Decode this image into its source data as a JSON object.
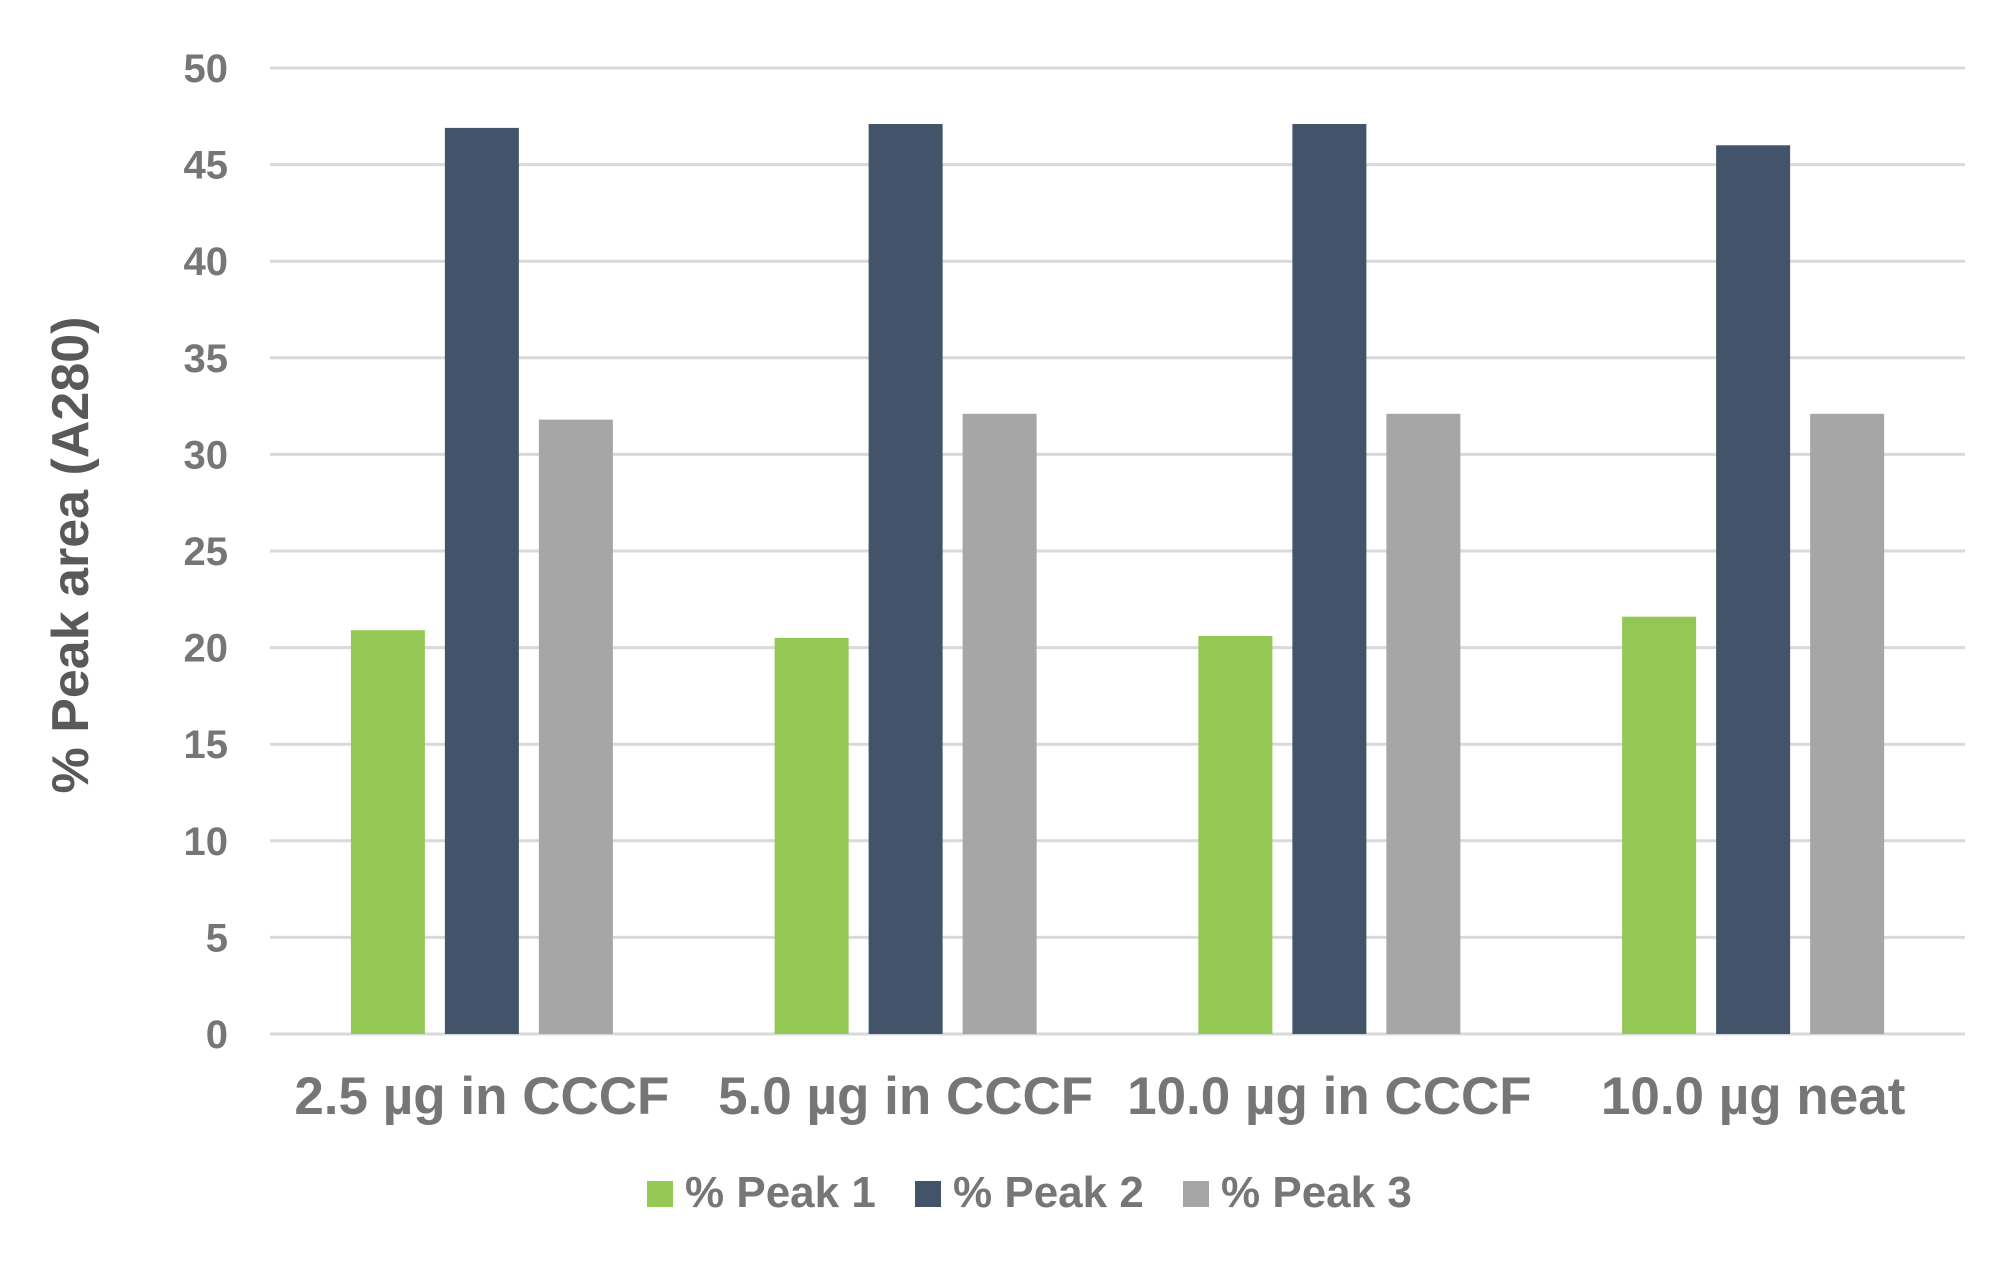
{
  "chart_data": {
    "type": "bar",
    "title": "",
    "xlabel": "",
    "ylabel": "% Peak area (A280)",
    "ylim": [
      0,
      50
    ],
    "ytick_step": 5,
    "grid": true,
    "legend_position": "bottom",
    "categories": [
      "2.5 µg in CCCF",
      "5.0 µg in CCCF",
      "10.0 µg in CCCF",
      "10.0 µg neat"
    ],
    "series": [
      {
        "name": "% Peak 1",
        "color": "#92c853",
        "values": [
          20.9,
          20.5,
          20.6,
          21.6
        ]
      },
      {
        "name": "% Peak 2",
        "color": "#435369",
        "values": [
          46.9,
          47.1,
          47.1,
          46.0
        ]
      },
      {
        "name": "% Peak 3",
        "color": "#a6a6a6",
        "values": [
          31.8,
          32.1,
          32.1,
          32.1
        ]
      }
    ]
  }
}
